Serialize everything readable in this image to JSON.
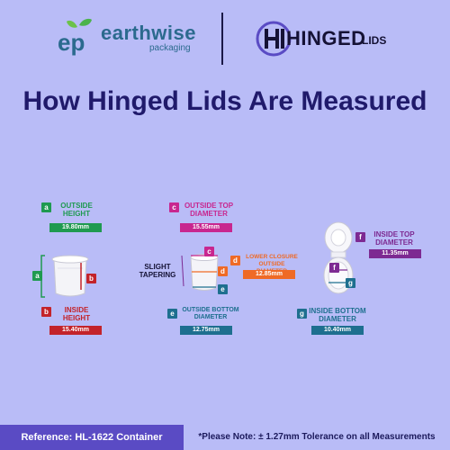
{
  "header": {
    "brand_name": "earthwise",
    "brand_sub": "packaging",
    "brand_mark": "ep",
    "partner_name": "HINGED",
    "partner_suffix": "LIDS"
  },
  "title": "How Hinged Lids Are Measured",
  "measurements": {
    "a": {
      "letter": "a",
      "label_1": "OUTSIDE",
      "label_2": "HEIGHT",
      "value": "19.80mm",
      "color": "#1f9a50"
    },
    "b": {
      "letter": "b",
      "label_1": "INSIDE",
      "label_2": "HEIGHT",
      "value": "15.40mm",
      "color": "#c3232a"
    },
    "c": {
      "letter": "c",
      "label_1": "OUTSIDE TOP",
      "label_2": "DIAMETER",
      "value": "15.55mm",
      "color": "#c8268f"
    },
    "d": {
      "letter": "d",
      "label_1": "LOWER CLOSURE",
      "label_2": "OUTSIDE DIAMETER",
      "value": "12.85mm",
      "color": "#ef6a26"
    },
    "e": {
      "letter": "e",
      "label_1": "OUTSIDE BOTTOM",
      "label_2": "DIAMETER",
      "value": "12.75mm",
      "color": "#1e6f8f"
    },
    "f": {
      "letter": "f",
      "label_1": "INSIDE TOP",
      "label_2": "DIAMETER",
      "value": "11.35mm",
      "color": "#7d2a92"
    },
    "g": {
      "letter": "g",
      "label_1": "INSIDE BOTTOM",
      "label_2": "DIAMETER",
      "value": "10.40mm",
      "color": "#1e6f8f"
    }
  },
  "slight_tapering": {
    "line_1": "SLIGHT",
    "line_2": "TAPERING"
  },
  "footer": {
    "reference": "Reference: HL-1622 Container",
    "note": "*Please Note: ± 1.27mm Tolerance on all Measurements"
  }
}
